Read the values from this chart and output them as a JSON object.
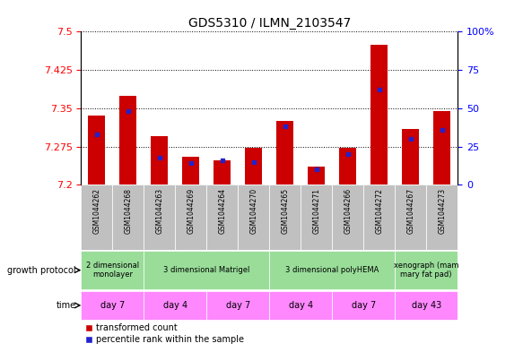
{
  "title": "GDS5310 / ILMN_2103547",
  "samples": [
    "GSM1044262",
    "GSM1044268",
    "GSM1044263",
    "GSM1044269",
    "GSM1044264",
    "GSM1044270",
    "GSM1044265",
    "GSM1044271",
    "GSM1044266",
    "GSM1044272",
    "GSM1044267",
    "GSM1044273"
  ],
  "transformed_count": [
    7.335,
    7.375,
    7.295,
    7.255,
    7.248,
    7.272,
    7.325,
    7.235,
    7.272,
    7.475,
    7.31,
    7.345
  ],
  "percentile_rank": [
    33,
    48,
    18,
    14,
    16,
    15,
    38,
    10,
    20,
    62,
    30,
    36
  ],
  "ymin": 7.2,
  "ymax": 7.5,
  "y_ticks": [
    7.2,
    7.275,
    7.35,
    7.425,
    7.5
  ],
  "y2min": 0,
  "y2max": 100,
  "y2_ticks": [
    0,
    25,
    50,
    75,
    100
  ],
  "bar_color": "#cc0000",
  "blue_color": "#2222cc",
  "sample_bg": "#c0c0c0",
  "gp_color": "#99dd99",
  "time_color": "#ff88ff",
  "groups": [
    {
      "label": "2 dimensional\nmonolayer",
      "start": 0,
      "end": 2
    },
    {
      "label": "3 dimensional Matrigel",
      "start": 2,
      "end": 6
    },
    {
      "label": "3 dimensional polyHEMA",
      "start": 6,
      "end": 10
    },
    {
      "label": "xenograph (mam\nmary fat pad)",
      "start": 10,
      "end": 12
    }
  ],
  "time_groups": [
    {
      "label": "day 7",
      "start": 0,
      "end": 2
    },
    {
      "label": "day 4",
      "start": 2,
      "end": 4
    },
    {
      "label": "day 7",
      "start": 4,
      "end": 6
    },
    {
      "label": "day 4",
      "start": 6,
      "end": 8
    },
    {
      "label": "day 7",
      "start": 8,
      "end": 10
    },
    {
      "label": "day 43",
      "start": 10,
      "end": 12
    }
  ],
  "growth_protocol_label": "growth protocol",
  "time_label": "time",
  "legend_red": "transformed count",
  "legend_blue": "percentile rank within the sample",
  "bar_width": 0.55
}
